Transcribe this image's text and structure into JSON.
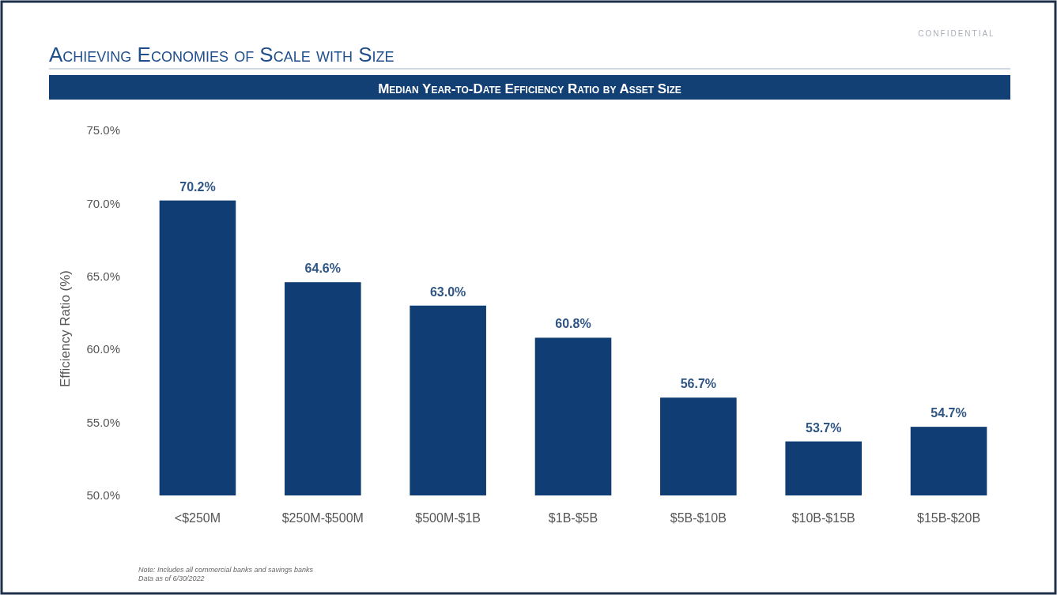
{
  "chart_data": {
    "type": "bar",
    "title": "Achieving Economies of Scale with Size",
    "subtitle": "Median Year-to-Date Efficiency Ratio by Asset Size",
    "ylabel": "Efficiency Ratio (%)",
    "categories": [
      "<$250M",
      "$250M-$500M",
      "$500M-$1B",
      "$1B-$5B",
      "$5B-$10B",
      "$10B-$15B",
      "$15B-$20B"
    ],
    "values": [
      70.2,
      64.6,
      63.0,
      60.8,
      56.7,
      53.7,
      54.7
    ],
    "color": "#103d73",
    "value_labels": [
      "70.2%",
      "64.6%",
      "63.0%",
      "60.8%",
      "56.7%",
      "53.7%",
      "54.7%"
    ],
    "ylim": [
      50,
      75
    ],
    "yticks": [
      {
        "value": 50,
        "label": "50.0%"
      },
      {
        "value": 55,
        "label": "55.0%"
      },
      {
        "value": 60,
        "label": "60.0%"
      },
      {
        "value": 65,
        "label": "65.0%"
      },
      {
        "value": 70,
        "label": "70.0%"
      },
      {
        "value": 75,
        "label": "75.0%"
      }
    ],
    "grid": false,
    "annotations": [
      "CONFIDENTIAL",
      "Note: Includes all commercial banks and savings banks",
      "Data as of 6/30/2022"
    ]
  }
}
